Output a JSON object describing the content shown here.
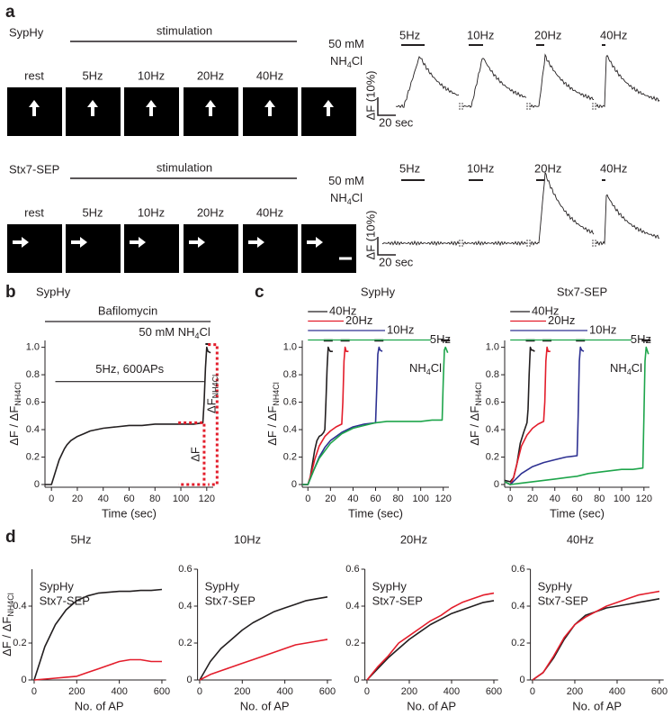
{
  "panel_labels": [
    "a",
    "b",
    "c",
    "d"
  ],
  "panel_a": {
    "rows": [
      {
        "name": "SypHy",
        "stimulation": "stimulation",
        "nh4cl": [
          "50 mM",
          "NH",
          "4",
          "Cl"
        ],
        "image_labels": [
          "rest",
          "5Hz",
          "10Hz",
          "20Hz",
          "40Hz"
        ],
        "trace_labels": [
          "5Hz",
          "10Hz",
          "20Hz",
          "40Hz"
        ],
        "scale_y": "ΔF (10%)",
        "scale_x": "20 sec"
      },
      {
        "name": "Stx7-SEP",
        "stimulation": "stimulation",
        "nh4cl": [
          "50 mM",
          "NH",
          "4",
          "Cl"
        ],
        "image_labels": [
          "rest",
          "5Hz",
          "10Hz",
          "20Hz",
          "40Hz"
        ],
        "trace_labels": [
          "5Hz",
          "10Hz",
          "20Hz",
          "40Hz"
        ],
        "scale_y": "ΔF (10%)",
        "scale_x": "20 sec"
      }
    ]
  },
  "chart_data": [
    {
      "type": "line",
      "title": "SypHy",
      "xlabel": "Time (sec)",
      "ylabel": [
        "ΔF / ΔF",
        "NH4Cl"
      ],
      "xlim": [
        -5,
        125
      ],
      "ylim": [
        -0.02,
        1.05
      ],
      "xticks": [
        0,
        20,
        40,
        60,
        80,
        100,
        120
      ],
      "yticks": [
        0,
        0.2,
        0.4,
        0.6,
        0.8,
        {
          "value": 1,
          "label": "1.0"
        }
      ],
      "annotations": {
        "drug": "Bafilomycin",
        "stim": "5Hz, 600APs",
        "nh4cl": [
          "50 mM NH",
          "4",
          "Cl"
        ],
        "delta_f": "ΔF",
        "delta_f_nh4cl": [
          "ΔF",
          "NH4Cl"
        ]
      },
      "series": [
        {
          "color": "#231f20",
          "x": [
            -5,
            -2,
            0,
            2,
            4,
            6,
            8,
            10,
            12,
            15,
            20,
            25,
            30,
            35,
            40,
            50,
            60,
            70,
            80,
            90,
            100,
            110,
            117,
            118,
            119,
            120,
            121,
            123
          ],
          "values": [
            0,
            0,
            0,
            0.06,
            0.12,
            0.18,
            0.22,
            0.26,
            0.29,
            0.32,
            0.35,
            0.37,
            0.39,
            0.4,
            0.41,
            0.42,
            0.43,
            0.43,
            0.44,
            0.44,
            0.44,
            0.44,
            0.45,
            0.6,
            0.85,
            1.0,
            0.97,
            0.96
          ]
        }
      ]
    },
    {
      "type": "line",
      "title": "SypHy",
      "xlabel": "Time (sec)",
      "ylabel": [
        "ΔF / ΔF",
        "NH4Cl"
      ],
      "xlim": [
        -5,
        125
      ],
      "ylim": [
        -0.02,
        1.05
      ],
      "xticks": [
        0,
        20,
        40,
        60,
        80,
        100,
        120
      ],
      "yticks": [
        0,
        0.2,
        0.4,
        0.6,
        0.8,
        {
          "value": 1,
          "label": "1.0"
        }
      ],
      "annotations": {
        "nh4cl": [
          "NH",
          "4",
          "Cl"
        ]
      },
      "series": [
        {
          "name": "40Hz",
          "color": "#231f20",
          "x": [
            -5,
            0,
            2,
            4,
            6,
            8,
            10,
            12,
            14,
            15,
            16,
            17,
            18,
            19,
            20,
            22
          ],
          "values": [
            0,
            0,
            0.05,
            0.15,
            0.25,
            0.32,
            0.35,
            0.36,
            0.38,
            0.4,
            0.6,
            0.85,
            1.0,
            0.98,
            0.97,
            0.97
          ]
        },
        {
          "name": "20Hz",
          "color": "#e31d2b",
          "x": [
            -5,
            0,
            3,
            6,
            10,
            15,
            20,
            25,
            30,
            31,
            32,
            33,
            34,
            36
          ],
          "values": [
            0,
            0,
            0.08,
            0.18,
            0.28,
            0.35,
            0.39,
            0.42,
            0.44,
            0.6,
            0.9,
            1.0,
            0.97,
            0.97
          ]
        },
        {
          "name": "10Hz",
          "color": "#2e3192",
          "x": [
            -5,
            0,
            5,
            10,
            15,
            20,
            30,
            40,
            50,
            60,
            61,
            62,
            63,
            64,
            66
          ],
          "values": [
            0,
            0,
            0.1,
            0.2,
            0.27,
            0.32,
            0.38,
            0.42,
            0.44,
            0.45,
            0.7,
            0.95,
            1.0,
            0.98,
            0.97
          ]
        },
        {
          "name": "5Hz",
          "color": "#1ea54b",
          "x": [
            -5,
            0,
            5,
            10,
            20,
            30,
            40,
            50,
            60,
            70,
            80,
            90,
            100,
            110,
            119,
            120,
            121,
            122,
            124
          ],
          "values": [
            0,
            0,
            0.1,
            0.19,
            0.3,
            0.37,
            0.41,
            0.43,
            0.45,
            0.46,
            0.46,
            0.46,
            0.46,
            0.47,
            0.47,
            0.75,
            0.98,
            1.0,
            0.96
          ]
        }
      ]
    },
    {
      "type": "line",
      "title": "Stx7-SEP",
      "xlabel": "Time (sec)",
      "ylabel": [
        "ΔF / ΔF",
        "NH4Cl"
      ],
      "xlim": [
        -5,
        125
      ],
      "ylim": [
        -0.02,
        1.05
      ],
      "xticks": [
        0,
        20,
        40,
        60,
        80,
        100,
        120
      ],
      "yticks": [
        0,
        0.2,
        0.4,
        0.6,
        0.8,
        {
          "value": 1,
          "label": "1.0"
        }
      ],
      "annotations": {
        "nh4cl": [
          "NH",
          "4",
          "Cl"
        ]
      },
      "series": [
        {
          "name": "40Hz",
          "color": "#231f20",
          "x": [
            -5,
            0,
            3,
            6,
            9,
            12,
            15,
            16,
            17,
            18,
            19,
            20,
            22
          ],
          "values": [
            0.03,
            0.02,
            0.05,
            0.15,
            0.3,
            0.38,
            0.45,
            0.55,
            0.8,
            1.0,
            0.98,
            0.98,
            0.97
          ]
        },
        {
          "name": "20Hz",
          "color": "#e31d2b",
          "x": [
            -5,
            0,
            3,
            6,
            10,
            15,
            20,
            25,
            30,
            31,
            32,
            33,
            34,
            36
          ],
          "values": [
            0.02,
            0,
            0.05,
            0.15,
            0.28,
            0.36,
            0.41,
            0.44,
            0.46,
            0.6,
            0.9,
            1.0,
            0.97,
            0.97
          ]
        },
        {
          "name": "10Hz",
          "color": "#2e3192",
          "x": [
            -5,
            0,
            5,
            10,
            20,
            30,
            40,
            50,
            60,
            61,
            62,
            63,
            64,
            66
          ],
          "values": [
            0.02,
            0,
            0.04,
            0.08,
            0.13,
            0.16,
            0.18,
            0.2,
            0.21,
            0.5,
            0.9,
            1.0,
            0.98,
            0.97
          ]
        },
        {
          "name": "5Hz",
          "color": "#1ea54b",
          "x": [
            -5,
            0,
            10,
            20,
            30,
            40,
            50,
            60,
            70,
            80,
            90,
            100,
            110,
            119,
            120,
            121,
            122,
            124
          ],
          "values": [
            0.02,
            0,
            0.01,
            0.02,
            0.03,
            0.04,
            0.05,
            0.06,
            0.08,
            0.09,
            0.1,
            0.11,
            0.11,
            0.12,
            0.5,
            0.9,
            1.0,
            0.95
          ]
        }
      ]
    },
    {
      "type": "line",
      "title": "5Hz",
      "xlabel": "No. of AP",
      "ylabel": [
        "ΔF / ΔF",
        "NH4Cl"
      ],
      "xlim": [
        -10,
        620
      ],
      "ylim": [
        0,
        0.6
      ],
      "xticks": [
        0,
        200,
        400,
        600
      ],
      "yticks": [
        0,
        0.2,
        0.4
      ],
      "x": [
        0,
        50,
        100,
        150,
        200,
        250,
        300,
        350,
        400,
        450,
        500,
        550,
        600
      ],
      "series": [
        {
          "name": "SypHy",
          "color": "#231f20",
          "values": [
            0,
            0.18,
            0.3,
            0.38,
            0.43,
            0.455,
            0.47,
            0.475,
            0.48,
            0.48,
            0.485,
            0.485,
            0.49
          ]
        },
        {
          "name": "Stx7-SEP",
          "color": "#e31d2b",
          "values": [
            0,
            0.005,
            0.01,
            0.015,
            0.02,
            0.04,
            0.06,
            0.08,
            0.1,
            0.11,
            0.11,
            0.1,
            0.1
          ]
        }
      ]
    },
    {
      "type": "line",
      "title": "10Hz",
      "xlabel": "No. of AP",
      "xlim": [
        -10,
        620
      ],
      "ylim": [
        0,
        0.6
      ],
      "xticks": [
        0,
        200,
        400,
        600
      ],
      "yticks": [
        0,
        0.2,
        0.4,
        0.6
      ],
      "x": [
        0,
        50,
        100,
        150,
        200,
        250,
        300,
        350,
        400,
        450,
        500,
        550,
        600
      ],
      "series": [
        {
          "name": "SypHy",
          "color": "#231f20",
          "values": [
            0,
            0.1,
            0.17,
            0.22,
            0.27,
            0.31,
            0.34,
            0.37,
            0.39,
            0.41,
            0.43,
            0.44,
            0.45
          ]
        },
        {
          "name": "Stx7-SEP",
          "color": "#e31d2b",
          "values": [
            0,
            0.03,
            0.05,
            0.07,
            0.09,
            0.11,
            0.13,
            0.15,
            0.17,
            0.19,
            0.2,
            0.21,
            0.22
          ]
        }
      ]
    },
    {
      "type": "line",
      "title": "20Hz",
      "xlabel": "No. of AP",
      "xlim": [
        -10,
        620
      ],
      "ylim": [
        0,
        0.6
      ],
      "xticks": [
        0,
        200,
        400,
        600
      ],
      "yticks": [
        0,
        0.2,
        0.4,
        0.6
      ],
      "x": [
        0,
        50,
        100,
        150,
        200,
        250,
        300,
        350,
        400,
        450,
        500,
        550,
        600
      ],
      "series": [
        {
          "name": "SypHy",
          "color": "#231f20",
          "values": [
            0,
            0.06,
            0.12,
            0.17,
            0.22,
            0.26,
            0.3,
            0.33,
            0.36,
            0.38,
            0.4,
            0.42,
            0.43
          ]
        },
        {
          "name": "Stx7-SEP",
          "color": "#e31d2b",
          "values": [
            0,
            0.07,
            0.13,
            0.2,
            0.24,
            0.28,
            0.32,
            0.35,
            0.39,
            0.42,
            0.44,
            0.46,
            0.47
          ]
        }
      ]
    },
    {
      "type": "line",
      "title": "40Hz",
      "xlabel": "No. of AP",
      "xlim": [
        -10,
        620
      ],
      "ylim": [
        0,
        0.6
      ],
      "xticks": [
        0,
        200,
        400,
        600
      ],
      "yticks": [
        0,
        0.2,
        0.4,
        0.6
      ],
      "x": [
        0,
        50,
        100,
        150,
        200,
        250,
        300,
        350,
        400,
        450,
        500,
        550,
        600
      ],
      "series": [
        {
          "name": "SypHy",
          "color": "#231f20",
          "values": [
            0,
            0.04,
            0.12,
            0.22,
            0.3,
            0.35,
            0.37,
            0.39,
            0.4,
            0.41,
            0.42,
            0.43,
            0.44
          ]
        },
        {
          "name": "Stx7-SEP",
          "color": "#e31d2b",
          "values": [
            0,
            0.04,
            0.13,
            0.23,
            0.3,
            0.34,
            0.37,
            0.4,
            0.42,
            0.44,
            0.46,
            0.47,
            0.48
          ]
        }
      ]
    }
  ]
}
